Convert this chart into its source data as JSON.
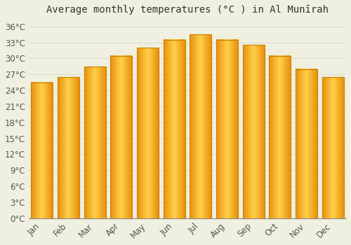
{
  "title": "Average monthly temperatures (°C ) in Al Munīrah",
  "months": [
    "Jan",
    "Feb",
    "Mar",
    "Apr",
    "May",
    "Jun",
    "Jul",
    "Aug",
    "Sep",
    "Oct",
    "Nov",
    "Dec"
  ],
  "values": [
    25.5,
    26.5,
    28.5,
    30.5,
    32.0,
    33.5,
    34.5,
    33.5,
    32.5,
    30.5,
    28.0,
    26.5
  ],
  "bar_color_left": "#E8900A",
  "bar_color_center": "#FFD04A",
  "bar_color_right": "#E8900A",
  "bar_edge_color": "#CC8000",
  "background_color": "#f0f0e0",
  "grid_color": "#ddddcc",
  "yticks": [
    0,
    3,
    6,
    9,
    12,
    15,
    18,
    21,
    24,
    27,
    30,
    33,
    36
  ],
  "ylim": [
    0,
    37.5
  ],
  "title_fontsize": 10,
  "tick_fontsize": 8.5,
  "bar_width": 0.82
}
